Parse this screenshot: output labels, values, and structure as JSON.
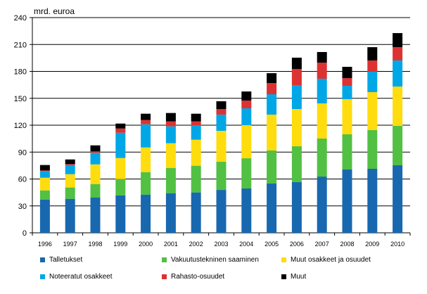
{
  "chart_data": {
    "type": "bar",
    "stacked": true,
    "title": "",
    "ylabel": "mrd. euroa",
    "xlabel": "",
    "ylim": [
      0,
      240
    ],
    "yticks": [
      0,
      30,
      60,
      90,
      120,
      150,
      180,
      210,
      240
    ],
    "grid": true,
    "legend_placement": "bottom",
    "categories": [
      "1996",
      "1997",
      "1998",
      "1999",
      "2000",
      "2001",
      "2002",
      "2003",
      "2004",
      "2005",
      "2006",
      "2007",
      "2008",
      "2009",
      "2010"
    ],
    "series": [
      {
        "name": "Talletukset",
        "color": "#1868b0",
        "values": [
          37.1,
          37.9,
          39.5,
          41.8,
          42.6,
          44.2,
          45.0,
          47.8,
          49.4,
          54.9,
          56.5,
          62.7,
          70.6,
          71.4,
          75.3
        ]
      },
      {
        "name": "Vakuutustekninen saaminen",
        "color": "#52c043",
        "values": [
          10.2,
          12.6,
          14.9,
          18.1,
          25.1,
          28.2,
          29.8,
          31.4,
          33.7,
          36.9,
          40.0,
          42.4,
          39.2,
          43.1,
          43.9
        ]
      },
      {
        "name": "Muut osakkeet ja osuudet",
        "color": "#ffdc0e",
        "values": [
          14.1,
          14.9,
          21.9,
          23.5,
          27.5,
          27.5,
          29.0,
          34.5,
          36.9,
          40.0,
          41.5,
          39.2,
          39.2,
          42.4,
          43.9
        ]
      },
      {
        "name": "Noteeratut osakkeet",
        "color": "#00a7e6",
        "values": [
          7.4,
          10.2,
          12.9,
          28.2,
          25.8,
          18.8,
          15.7,
          18.1,
          18.8,
          22.7,
          26.7,
          27.5,
          14.9,
          22.7,
          29.1
        ]
      },
      {
        "name": "Rahasto-osuudet",
        "color": "#dc3232",
        "values": [
          0.7,
          1.0,
          1.5,
          4.7,
          4.8,
          5.5,
          4.7,
          6.2,
          8.7,
          12.5,
          18.0,
          18.0,
          8.6,
          12.6,
          14.8
        ]
      },
      {
        "name": "Muut",
        "color": "#000000",
        "values": [
          6.1,
          5.2,
          6.8,
          5.5,
          7.0,
          9.4,
          8.6,
          8.7,
          10.1,
          11.0,
          12.6,
          11.8,
          12.6,
          14.8,
          15.7
        ]
      }
    ]
  }
}
